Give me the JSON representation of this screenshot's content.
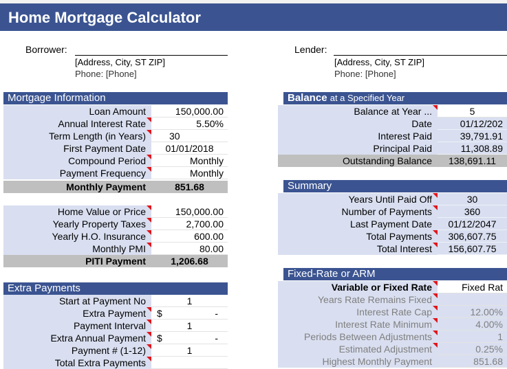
{
  "title": "Home Mortgage Calculator",
  "borrower": {
    "label": "Borrower:",
    "address": "[Address, City, ST ZIP]",
    "phone": "Phone: [Phone]"
  },
  "lender": {
    "label": "Lender:",
    "address": "[Address, City, ST ZIP]",
    "phone": "Phone: [Phone]"
  },
  "mortgage": {
    "header": "Mortgage Information",
    "rows": [
      {
        "label": "Loan Amount",
        "value": "150,000.00"
      },
      {
        "label": "Annual Interest Rate",
        "value": "5.50%"
      },
      {
        "label": "Term Length (in Years)",
        "value": "30"
      },
      {
        "label": "First Payment Date",
        "value": "01/01/2018"
      },
      {
        "label": "Compound Period",
        "value": "Monthly"
      },
      {
        "label": "Payment Frequency",
        "value": "Monthly"
      }
    ],
    "monthly_payment_label": "Monthly Payment",
    "monthly_payment_value": "851.68",
    "rows2": [
      {
        "label": "Home Value or Price",
        "value": "150,000.00"
      },
      {
        "label": "Yearly Property Taxes",
        "value": "2,700.00"
      },
      {
        "label": "Yearly H.O. Insurance",
        "value": "600.00"
      },
      {
        "label": "Monthly PMI",
        "value": "80.00"
      }
    ],
    "piti_label": "PITI Payment",
    "piti_value": "1,206.68"
  },
  "extra": {
    "header": "Extra Payments",
    "rows": [
      {
        "label": "Start at Payment No",
        "value": "1"
      },
      {
        "label": "Extra Payment",
        "dollar": "$",
        "value": "-"
      },
      {
        "label": "Payment Interval",
        "value": "1"
      },
      {
        "label": "Extra Annual Payment",
        "dollar": "$",
        "value": "-"
      },
      {
        "label": "Payment # (1-12)",
        "value": "1"
      },
      {
        "label": "Total Extra Payments",
        "value": ""
      }
    ]
  },
  "balance": {
    "header_bold": "Balance",
    "header_rest": "at a Specified Year",
    "rows": [
      {
        "label": "Balance at Year ...",
        "value": "5"
      },
      {
        "label": "Date",
        "value": "01/12/202"
      },
      {
        "label": "Interest Paid",
        "value": "39,791.91"
      },
      {
        "label": "Principal Paid",
        "value": "11,308.89"
      }
    ],
    "outstanding_label": "Outstanding Balance",
    "outstanding_value": "138,691.11"
  },
  "summary": {
    "header": "Summary",
    "rows": [
      {
        "label": "Years Until Paid Off",
        "value": "30"
      },
      {
        "label": "Number of Payments",
        "value": "360"
      },
      {
        "label": "Last Payment Date",
        "value": "01/12/2047"
      },
      {
        "label": "Total Payments",
        "value": "306,607.75"
      },
      {
        "label": "Total Interest",
        "value": "156,607.75"
      }
    ]
  },
  "arm": {
    "header": "Fixed-Rate or ARM",
    "variable_label": "Variable or Fixed Rate",
    "variable_value": "Fixed Rat",
    "rows": [
      {
        "label": "Years Rate Remains Fixed",
        "value": ""
      },
      {
        "label": "Interest Rate Cap",
        "value": "12.00%"
      },
      {
        "label": "Interest Rate Minimum",
        "value": "4.00%"
      },
      {
        "label": "Periods Between Adjustments",
        "value": "1"
      },
      {
        "label": "Estimated Adjustment",
        "value": "0.25%"
      },
      {
        "label": "Highest Monthly Payment",
        "value": "851.68"
      }
    ]
  }
}
